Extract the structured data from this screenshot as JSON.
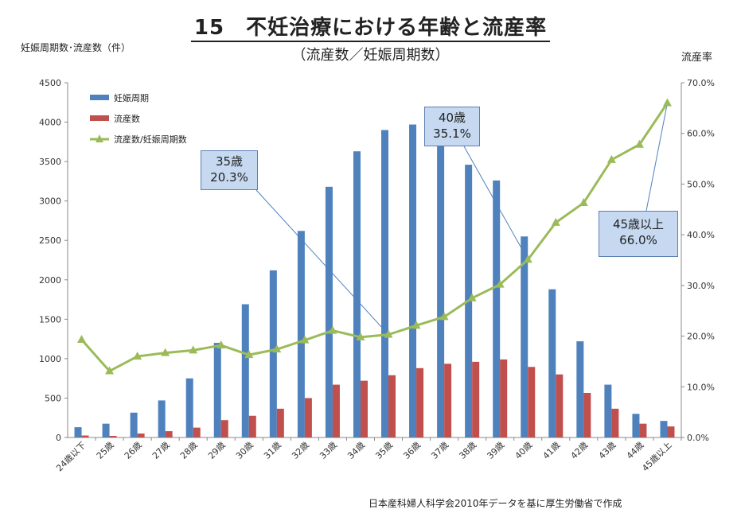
{
  "chart_data": {
    "type": "bar",
    "title": "15　不妊治療における年齢と流産率",
    "subtitle": "（流産数／妊娠周期数）",
    "ylabel": "妊娠周期数･流産数（件）",
    "y2label": "流産率",
    "ylim": [
      0,
      4500
    ],
    "y2lim": [
      0,
      0.7
    ],
    "yticks": [
      "0",
      "500",
      "1000",
      "1500",
      "2000",
      "2500",
      "3000",
      "3500",
      "4000",
      "4500"
    ],
    "y2ticks": [
      "0.0%",
      "10.0%",
      "20.0%",
      "30.0%",
      "40.0%",
      "50.0%",
      "60.0%",
      "70.0%"
    ],
    "categories": [
      "24歳以下",
      "25歳",
      "26歳",
      "27歳",
      "28歳",
      "29歳",
      "30歳",
      "31歳",
      "32歳",
      "33歳",
      "34歳",
      "35歳",
      "36歳",
      "37歳",
      "38歳",
      "39歳",
      "40歳",
      "41歳",
      "42歳",
      "43歳",
      "44歳",
      "45歳以上"
    ],
    "series": [
      {
        "name": "妊娠周期",
        "type": "bar",
        "axis": "left",
        "color": "#4f81bd",
        "values": [
          130,
          175,
          315,
          470,
          750,
          1200,
          1690,
          2120,
          2620,
          3180,
          3630,
          3900,
          3970,
          3740,
          3460,
          3260,
          2550,
          1880,
          1220,
          670,
          300,
          210
        ]
      },
      {
        "name": "流産数",
        "type": "bar",
        "axis": "right-offset",
        "color": "#c0504d",
        "values": [
          25,
          20,
          50,
          80,
          125,
          220,
          275,
          365,
          500,
          670,
          720,
          790,
          880,
          935,
          960,
          990,
          895,
          800,
          565,
          365,
          175,
          140
        ]
      },
      {
        "name": "流産数/妊娠周期数",
        "type": "line",
        "axis": "right",
        "color": "#9bbb59",
        "values": [
          0.193,
          0.131,
          0.16,
          0.167,
          0.172,
          0.182,
          0.163,
          0.174,
          0.192,
          0.211,
          0.198,
          0.203,
          0.221,
          0.238,
          0.275,
          0.302,
          0.351,
          0.424,
          0.463,
          0.548,
          0.578,
          0.66
        ]
      }
    ],
    "legend": "top-left",
    "annotations": [
      {
        "line1": "35歳",
        "line2": "20.3%",
        "category_index": 11
      },
      {
        "line1": "40歳",
        "line2": "35.1%",
        "category_index": 16
      },
      {
        "line1": "45歳以上",
        "line2": "66.0%",
        "category_index": 21
      }
    ]
  },
  "source_note": "日本産科婦人科学会2010年データを基に厚生労働省で作成"
}
